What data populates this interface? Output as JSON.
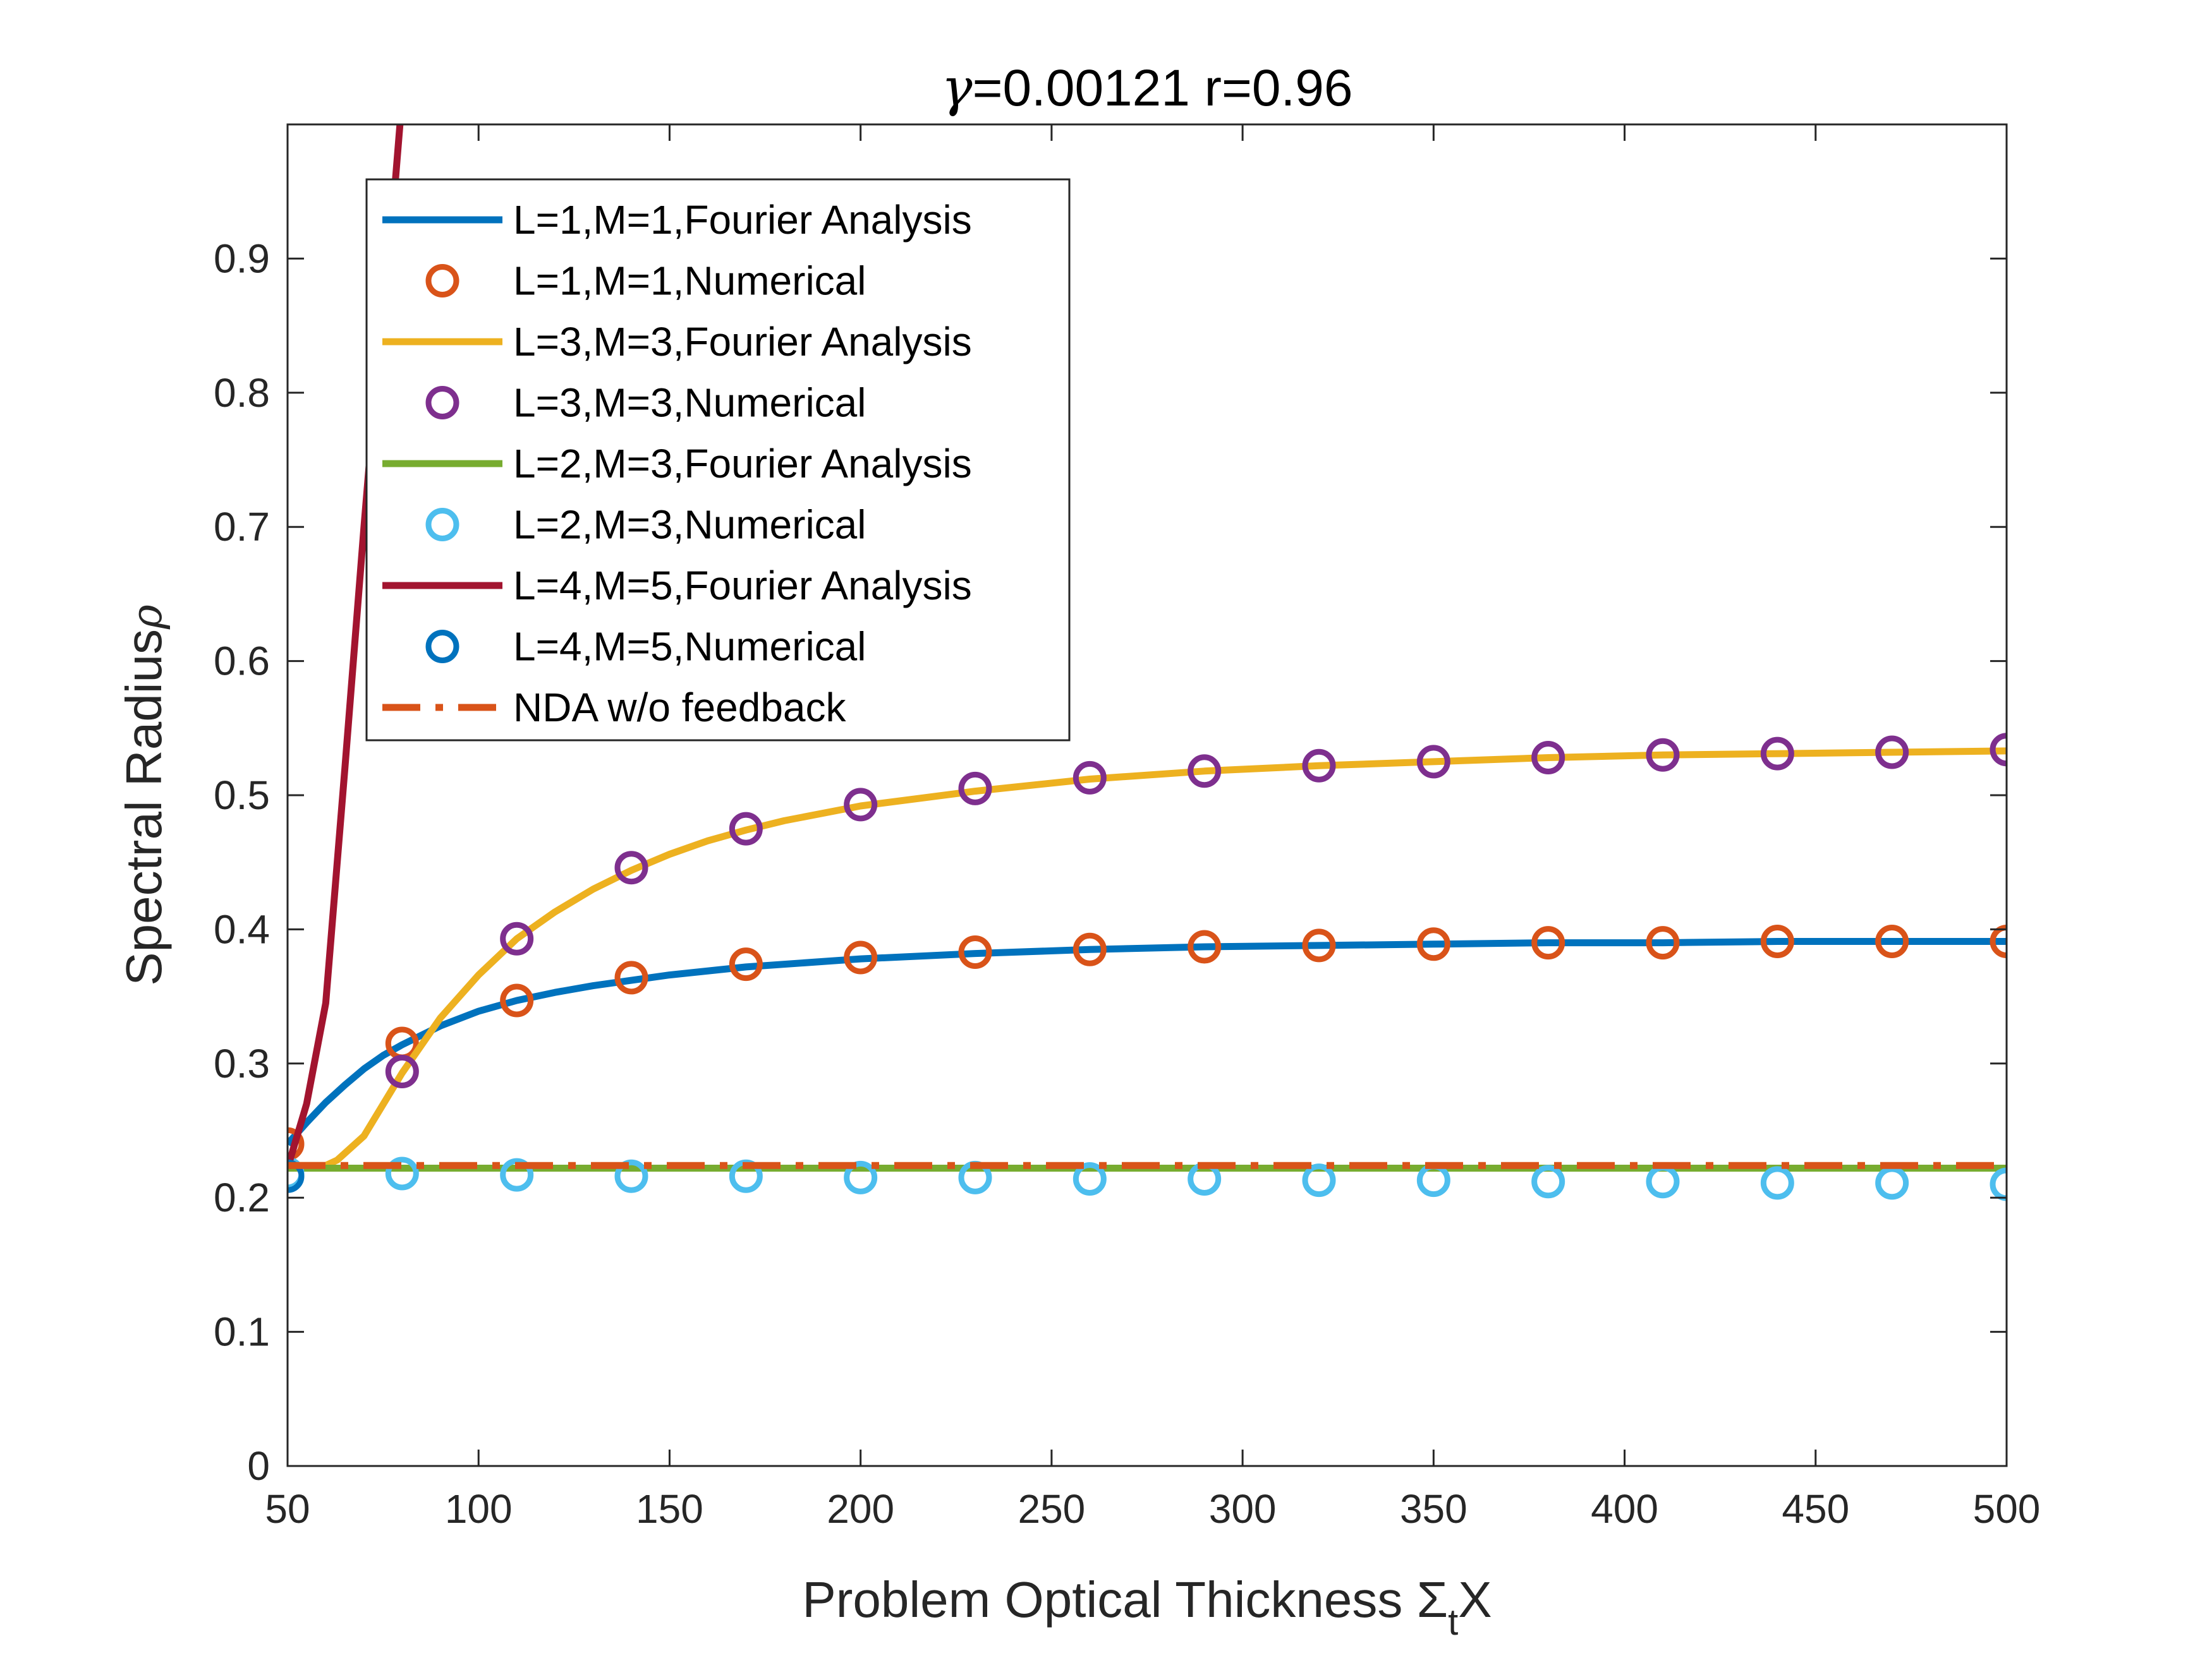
{
  "chart_data": {
    "type": "line",
    "title": {
      "symbol": "γ",
      "text": "=0.00121 r=0.96"
    },
    "xlabel": {
      "text": "Problem Optical Thickness Σ",
      "sub": "t",
      "tail": "X"
    },
    "ylabel": {
      "text": "Spectral Radius",
      "symbol": "ρ"
    },
    "xlim": [
      50,
      500
    ],
    "ylim": [
      0,
      1
    ],
    "xticks": [
      "50",
      "100",
      "150",
      "200",
      "250",
      "300",
      "350",
      "400",
      "450",
      "500"
    ],
    "yticks": [
      "0",
      "0.1",
      "0.2",
      "0.3",
      "0.4",
      "0.5",
      "0.6",
      "0.7",
      "0.8",
      "0.9"
    ],
    "grid": false,
    "legend_position": "top-left",
    "series": [
      {
        "name": "L=1,M=1,Fourier Analysis",
        "style": "line",
        "color": "#0072BD",
        "x": [
          50,
          55,
          60,
          65,
          70,
          75,
          80,
          90,
          100,
          110,
          120,
          130,
          140,
          150,
          170,
          200,
          230,
          260,
          290,
          320,
          350,
          380,
          410,
          440,
          470,
          500
        ],
        "y": [
          0.24,
          0.256,
          0.271,
          0.284,
          0.296,
          0.306,
          0.314,
          0.328,
          0.339,
          0.347,
          0.353,
          0.358,
          0.362,
          0.366,
          0.372,
          0.378,
          0.382,
          0.385,
          0.387,
          0.388,
          0.389,
          0.39,
          0.39,
          0.391,
          0.391,
          0.391
        ]
      },
      {
        "name": "L=1,M=1,Numerical",
        "style": "marker",
        "color": "#D95319",
        "x": [
          50,
          80,
          110,
          140,
          170,
          200,
          230,
          260,
          290,
          320,
          350,
          380,
          410,
          440,
          470,
          500
        ],
        "y": [
          0.24,
          0.315,
          0.347,
          0.364,
          0.374,
          0.379,
          0.383,
          0.385,
          0.387,
          0.388,
          0.389,
          0.39,
          0.39,
          0.391,
          0.391,
          0.391
        ]
      },
      {
        "name": "L=3,M=3,Fourier Analysis",
        "style": "line",
        "color": "#EDB120",
        "x": [
          50,
          60,
          63,
          70,
          80,
          90,
          100,
          110,
          120,
          130,
          140,
          150,
          160,
          170,
          180,
          200,
          230,
          260,
          290,
          320,
          350,
          380,
          410,
          440,
          470,
          500
        ],
        "y": [
          0.224,
          0.224,
          0.228,
          0.246,
          0.293,
          0.334,
          0.366,
          0.393,
          0.413,
          0.43,
          0.444,
          0.456,
          0.466,
          0.474,
          0.481,
          0.492,
          0.503,
          0.512,
          0.518,
          0.522,
          0.525,
          0.528,
          0.53,
          0.531,
          0.532,
          0.533
        ]
      },
      {
        "name": "L=3,M=3,Numerical",
        "style": "marker",
        "color": "#7E2F8E",
        "x": [
          80,
          110,
          140,
          170,
          200,
          230,
          260,
          290,
          320,
          350,
          380,
          410,
          440,
          470,
          500
        ],
        "y": [
          0.294,
          0.393,
          0.446,
          0.475,
          0.493,
          0.505,
          0.513,
          0.518,
          0.522,
          0.525,
          0.528,
          0.53,
          0.531,
          0.532,
          0.534
        ]
      },
      {
        "name": "L=2,M=3,Fourier Analysis",
        "style": "line",
        "color": "#77AC30",
        "x": [
          50,
          500
        ],
        "y": [
          0.222,
          0.222
        ]
      },
      {
        "name": "L=2,M=3,Numerical",
        "style": "marker",
        "color": "#4DBEEE",
        "x": [
          50,
          80,
          110,
          140,
          170,
          200,
          230,
          260,
          290,
          320,
          350,
          380,
          410,
          440,
          470,
          500
        ],
        "y": [
          0.218,
          0.218,
          0.217,
          0.216,
          0.216,
          0.215,
          0.215,
          0.214,
          0.214,
          0.213,
          0.213,
          0.212,
          0.212,
          0.211,
          0.211,
          0.21
        ]
      },
      {
        "name": "L=4,M=5,Fourier Analysis",
        "style": "line",
        "color": "#A2142F",
        "x": [
          50,
          55,
          60,
          65,
          70,
          75,
          78,
          80
        ],
        "y": [
          0.222,
          0.27,
          0.345,
          0.52,
          0.7,
          0.87,
          0.95,
          1.02
        ]
      },
      {
        "name": "L=4,M=5,Numerical",
        "style": "marker",
        "color": "#0072BD",
        "x": [
          50
        ],
        "y": [
          0.216
        ]
      },
      {
        "name": "NDA w/o feedback",
        "style": "dashdot",
        "color": "#D95319",
        "x": [
          50,
          500
        ],
        "y": [
          0.224,
          0.224
        ]
      }
    ]
  }
}
